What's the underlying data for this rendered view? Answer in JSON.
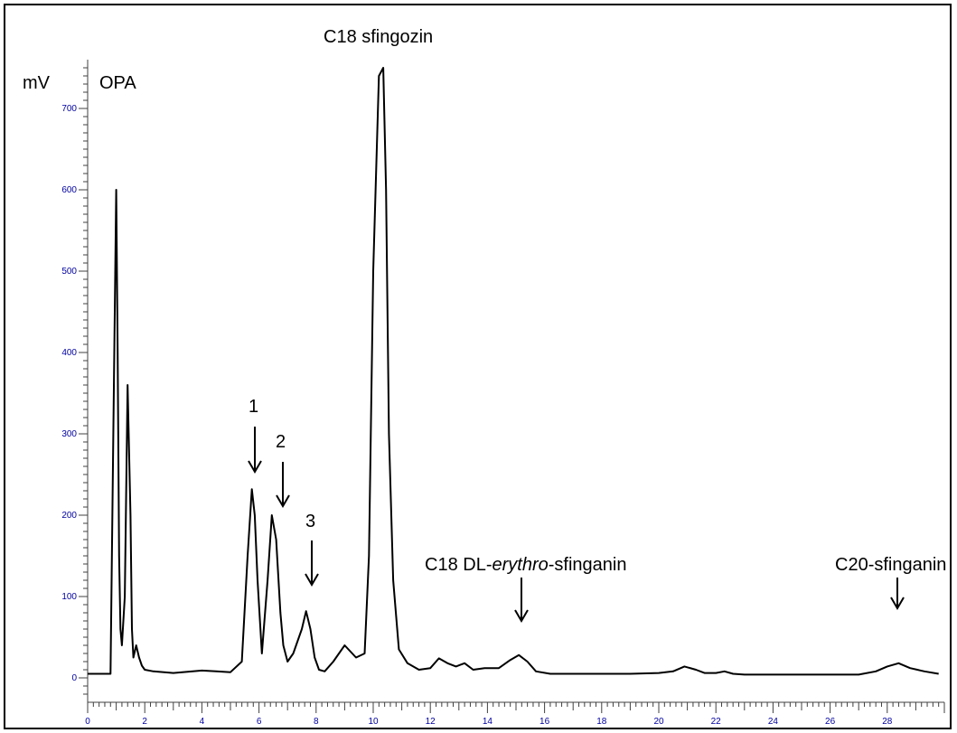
{
  "chart_data": {
    "type": "line",
    "title": "",
    "xlabel": "",
    "ylabel": "mV",
    "xlim": [
      0,
      30
    ],
    "ylim": [
      -30,
      760
    ],
    "x_ticks": [
      0,
      2,
      4,
      6,
      8,
      10,
      12,
      14,
      16,
      18,
      20,
      22,
      24,
      26,
      28
    ],
    "y_ticks": [
      0,
      100,
      200,
      300,
      400,
      500,
      600,
      700
    ],
    "grid": false,
    "colors": {
      "axis_text": "#0000a0",
      "trace": "#000000",
      "frame": "#000000"
    },
    "series": [
      {
        "x": [
          0.0,
          0.8,
          0.9,
          1.0,
          1.05,
          1.1,
          1.15,
          1.2,
          1.3,
          1.4,
          1.5,
          1.55,
          1.6,
          1.7,
          1.8,
          1.9,
          2.0,
          2.3,
          3.0,
          4.0,
          4.5,
          5.0,
          5.4,
          5.6,
          5.75,
          5.85,
          5.95,
          6.1,
          6.3,
          6.45,
          6.6,
          6.75,
          6.85,
          7.0,
          7.2,
          7.5,
          7.65,
          7.8,
          7.95,
          8.1,
          8.3,
          8.6,
          9.0,
          9.4,
          9.7,
          9.85,
          10.0,
          10.2,
          10.35,
          10.45,
          10.55,
          10.7,
          10.9,
          11.2,
          11.6,
          12.0,
          12.3,
          12.6,
          12.9,
          13.2,
          13.5,
          13.9,
          14.4,
          14.8,
          15.1,
          15.4,
          15.7,
          16.2,
          17.0,
          18.0,
          19.0,
          20.0,
          20.5,
          20.9,
          21.3,
          21.6,
          22.0,
          22.3,
          22.6,
          23.0,
          24.0,
          25.0,
          26.0,
          27.0,
          27.6,
          28.0,
          28.4,
          28.8,
          29.3,
          29.8
        ],
        "values": [
          5,
          5,
          300,
          600,
          400,
          150,
          60,
          40,
          100,
          360,
          200,
          60,
          25,
          40,
          25,
          15,
          10,
          8,
          6,
          9,
          8,
          7,
          20,
          150,
          232,
          200,
          120,
          30,
          120,
          200,
          170,
          80,
          40,
          20,
          30,
          60,
          82,
          60,
          25,
          10,
          8,
          20,
          40,
          25,
          30,
          150,
          500,
          740,
          750,
          600,
          300,
          120,
          35,
          18,
          10,
          12,
          24,
          18,
          14,
          18,
          10,
          12,
          12,
          22,
          28,
          20,
          8,
          5,
          5,
          5,
          5,
          6,
          8,
          14,
          10,
          6,
          6,
          8,
          5,
          4,
          4,
          4,
          4,
          4,
          8,
          14,
          18,
          12,
          8,
          5
        ]
      }
    ],
    "annotations": {
      "opa": "OPA",
      "c18_sfingozin": "C18 sfingozin",
      "peak_1": "1",
      "peak_2": "2",
      "peak_3": "3",
      "c18_dl_prefix": "C18 DL-",
      "c18_dl_italic": "erythro",
      "c18_dl_suffix": "-sfinganin",
      "c20_sfinganin": "C20-sfinganin"
    }
  }
}
